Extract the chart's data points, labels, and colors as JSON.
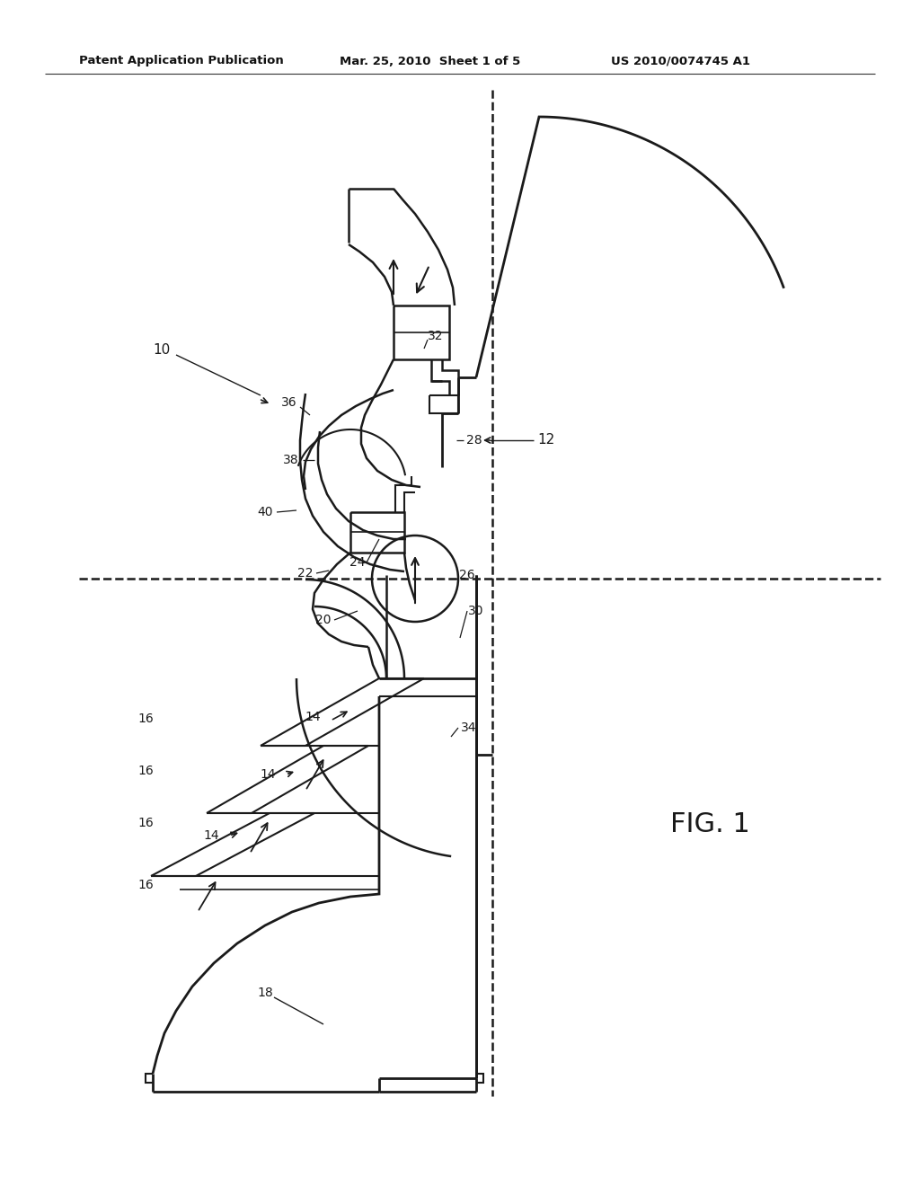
{
  "bg_color": "#ffffff",
  "line_color": "#1a1a1a",
  "header_left": "Patent Application Publication",
  "header_mid": "Mar. 25, 2010  Sheet 1 of 5",
  "header_right": "US 2010/0074745 A1",
  "fig_label": "FIG. 1"
}
